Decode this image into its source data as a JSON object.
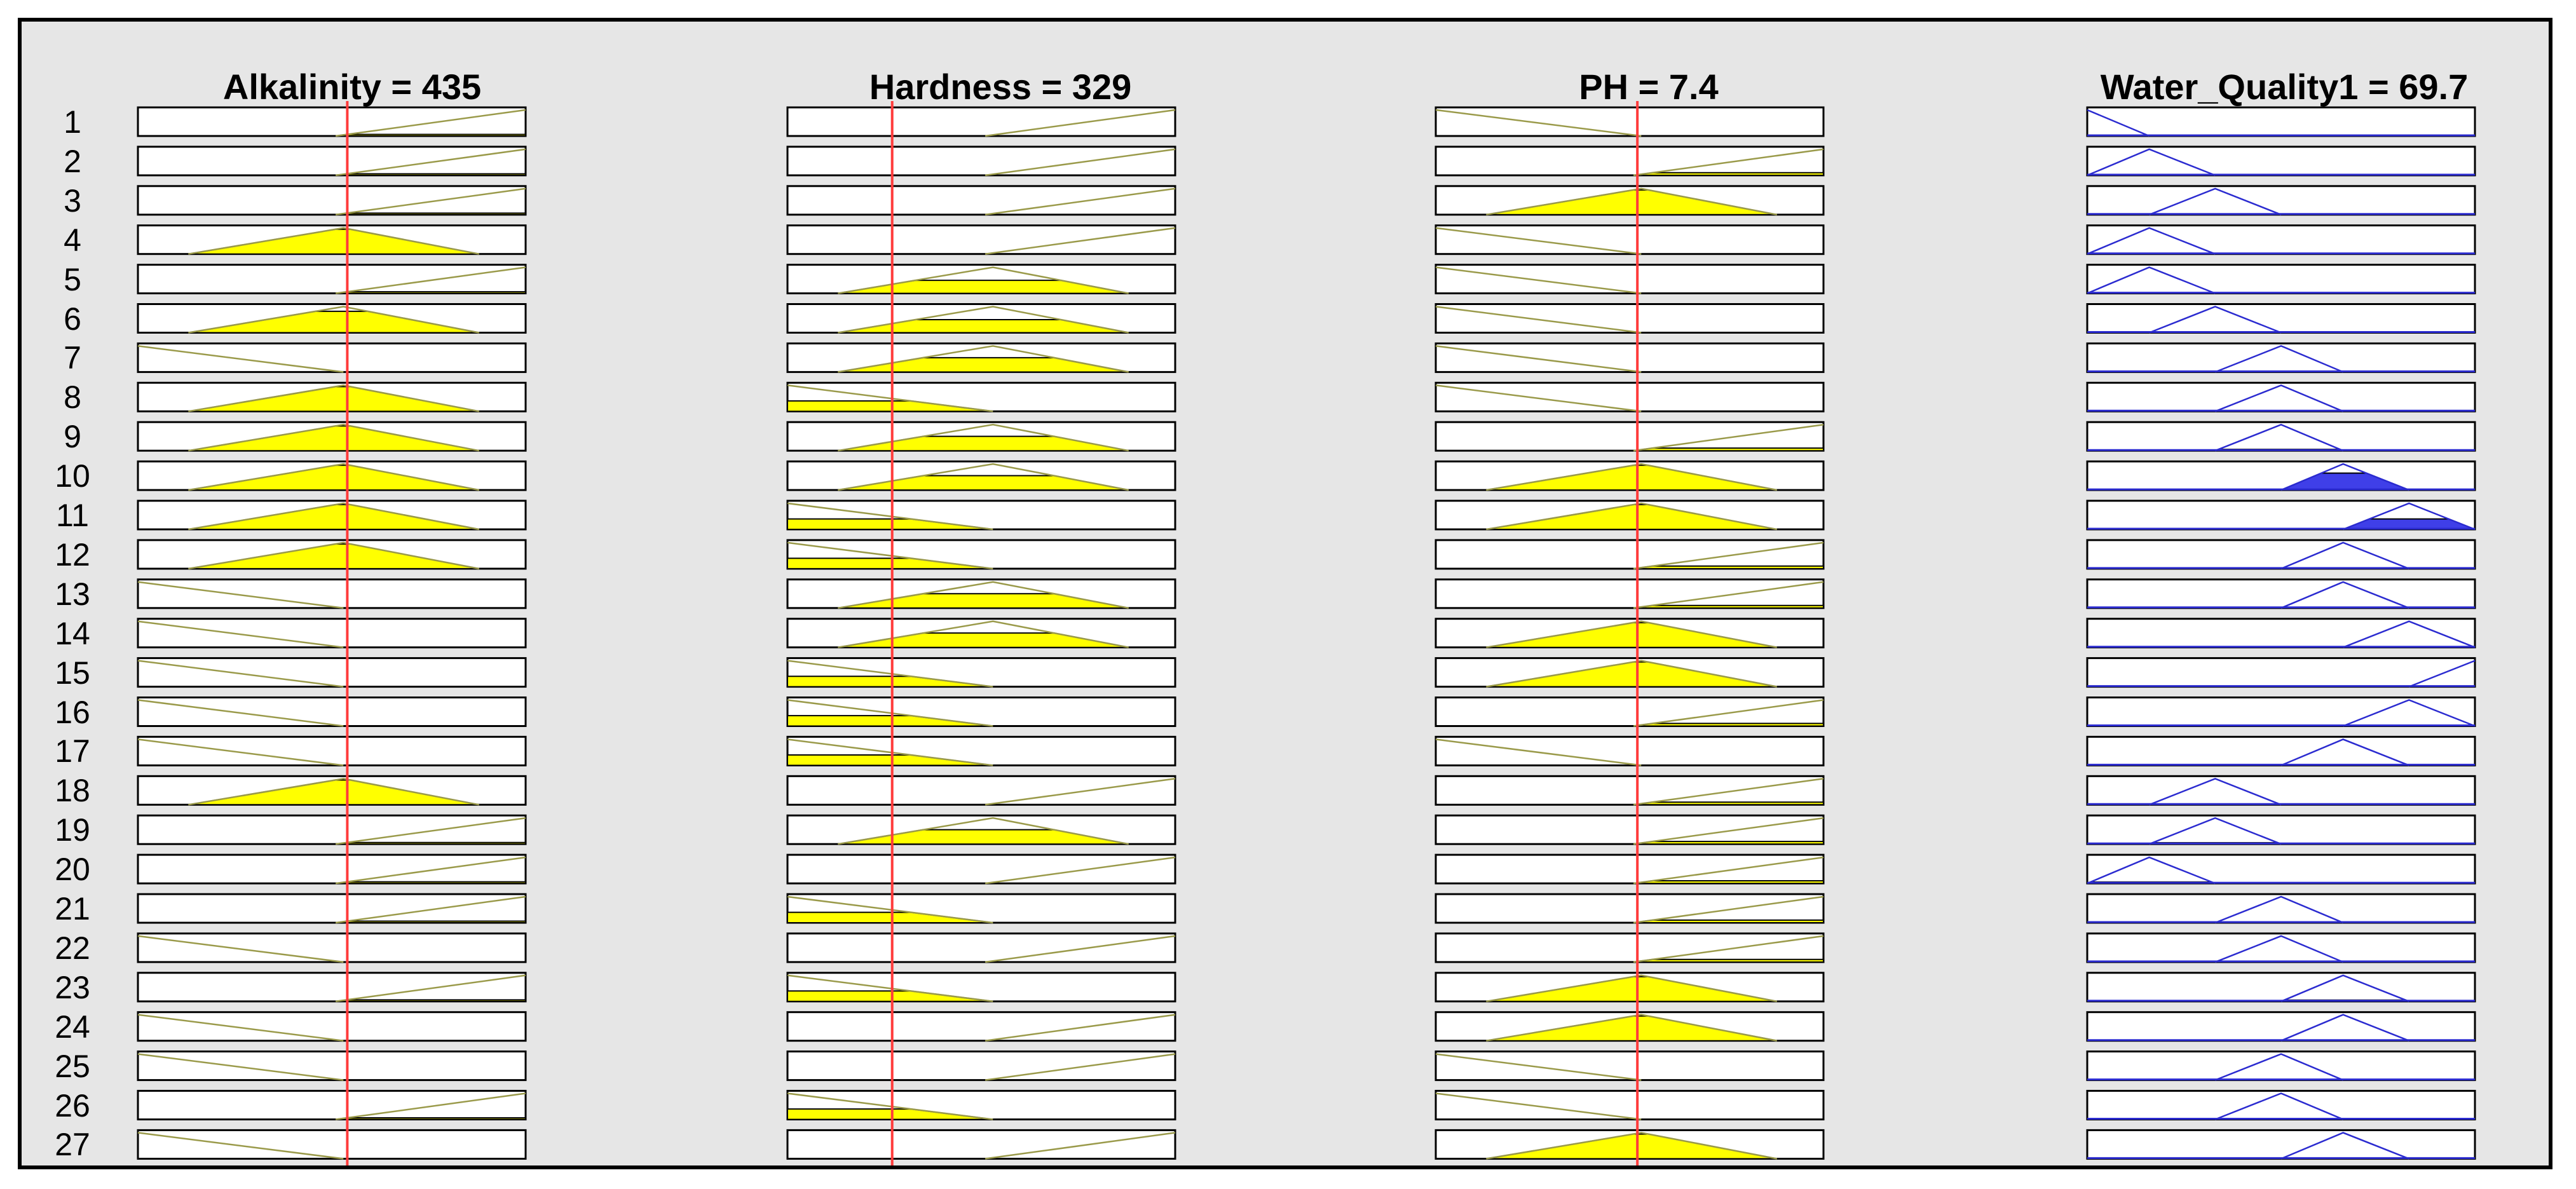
{
  "window": {
    "kind": "Rule Viewer"
  },
  "colors": {
    "background": "#e6e6e6",
    "input_fill": "#ffff00",
    "input_line": "#9a9a4a",
    "output_line": "#2b2bd0",
    "output_fill": "#3f3fe8",
    "indicator": "#ff3b3b"
  },
  "variables": [
    {
      "label": "Alkalinity = 435",
      "kind": "input"
    },
    {
      "label": "Hardness = 329",
      "kind": "input"
    },
    {
      "label": "PH = 7.4",
      "kind": "input"
    },
    {
      "label": "Water_Quality1 = 69.7",
      "kind": "output"
    }
  ],
  "indicator_fraction": [
    0.54,
    0.27,
    0.52
  ],
  "rules": [
    {
      "label": "1",
      "mfs": [
        "high",
        "high",
        "low",
        "vlow"
      ],
      "fire": [
        0.06,
        0,
        0,
        0
      ]
    },
    {
      "label": "2",
      "mfs": [
        "high",
        "high",
        "high",
        "low"
      ],
      "fire": [
        0.06,
        0,
        0.1,
        0
      ]
    },
    {
      "label": "3",
      "mfs": [
        "high",
        "high",
        "med",
        "mid1"
      ],
      "fire": [
        0.06,
        0,
        0.95,
        0
      ]
    },
    {
      "label": "4",
      "mfs": [
        "med",
        "high",
        "low",
        "low"
      ],
      "fire": [
        0.95,
        0,
        0,
        0
      ]
    },
    {
      "label": "5",
      "mfs": [
        "high",
        "med",
        "low",
        "low"
      ],
      "fire": [
        0.06,
        0.5,
        0,
        0
      ]
    },
    {
      "label": "6",
      "mfs": [
        "med",
        "med",
        "low",
        "mid1"
      ],
      "fire": [
        0.82,
        0.5,
        0,
        0
      ]
    },
    {
      "label": "7",
      "mfs": [
        "low",
        "med",
        "low",
        "mid2"
      ],
      "fire": [
        0,
        0.55,
        0,
        0
      ]
    },
    {
      "label": "8",
      "mfs": [
        "med",
        "low",
        "low",
        "mid2"
      ],
      "fire": [
        0.95,
        0.4,
        0,
        0
      ]
    },
    {
      "label": "9",
      "mfs": [
        "med",
        "med",
        "high",
        "mid2"
      ],
      "fire": [
        0.95,
        0.55,
        0.1,
        0.05
      ]
    },
    {
      "label": "10",
      "mfs": [
        "med",
        "med",
        "med",
        "mid3"
      ],
      "fire": [
        0.95,
        0.55,
        0.95,
        0.65
      ]
    },
    {
      "label": "11",
      "mfs": [
        "med",
        "low",
        "med",
        "high"
      ],
      "fire": [
        0.95,
        0.4,
        0.95,
        0.4
      ]
    },
    {
      "label": "12",
      "mfs": [
        "med",
        "low",
        "high",
        "mid3"
      ],
      "fire": [
        0.95,
        0.4,
        0.1,
        0
      ]
    },
    {
      "label": "13",
      "mfs": [
        "low",
        "med",
        "high",
        "mid3"
      ],
      "fire": [
        0,
        0.55,
        0.1,
        0
      ]
    },
    {
      "label": "14",
      "mfs": [
        "low",
        "med",
        "med",
        "high"
      ],
      "fire": [
        0,
        0.55,
        0.95,
        0
      ]
    },
    {
      "label": "15",
      "mfs": [
        "low",
        "low",
        "med",
        "vhigh"
      ],
      "fire": [
        0,
        0.4,
        0.95,
        0
      ]
    },
    {
      "label": "16",
      "mfs": [
        "low",
        "low",
        "high",
        "high"
      ],
      "fire": [
        0,
        0.4,
        0.1,
        0
      ]
    },
    {
      "label": "17",
      "mfs": [
        "low",
        "low",
        "low",
        "mid3"
      ],
      "fire": [
        0,
        0.4,
        0,
        0
      ]
    },
    {
      "label": "18",
      "mfs": [
        "med",
        "high",
        "high",
        "mid1"
      ],
      "fire": [
        0.95,
        0,
        0.1,
        0
      ]
    },
    {
      "label": "19",
      "mfs": [
        "high",
        "med",
        "high",
        "mid1"
      ],
      "fire": [
        0.06,
        0.55,
        0.1,
        0.05
      ]
    },
    {
      "label": "20",
      "mfs": [
        "high",
        "high",
        "high",
        "low"
      ],
      "fire": [
        0.06,
        0,
        0.1,
        0.05
      ]
    },
    {
      "label": "21",
      "mfs": [
        "high",
        "low",
        "high",
        "mid2"
      ],
      "fire": [
        0.06,
        0.4,
        0.1,
        0
      ]
    },
    {
      "label": "22",
      "mfs": [
        "low",
        "high",
        "high",
        "mid2"
      ],
      "fire": [
        0,
        0,
        0.1,
        0
      ]
    },
    {
      "label": "23",
      "mfs": [
        "high",
        "low",
        "med",
        "mid3"
      ],
      "fire": [
        0.06,
        0.4,
        0.95,
        0.05
      ]
    },
    {
      "label": "24",
      "mfs": [
        "low",
        "high",
        "med",
        "mid3"
      ],
      "fire": [
        0,
        0,
        0.95,
        0
      ]
    },
    {
      "label": "25",
      "mfs": [
        "low",
        "high",
        "low",
        "mid2"
      ],
      "fire": [
        0,
        0,
        0,
        0
      ]
    },
    {
      "label": "26",
      "mfs": [
        "high",
        "low",
        "low",
        "mid2"
      ],
      "fire": [
        0.06,
        0.4,
        0,
        0
      ]
    },
    {
      "label": "27",
      "mfs": [
        "low",
        "high",
        "med",
        "mid3"
      ],
      "fire": [
        0,
        0,
        0.95,
        0
      ]
    }
  ]
}
